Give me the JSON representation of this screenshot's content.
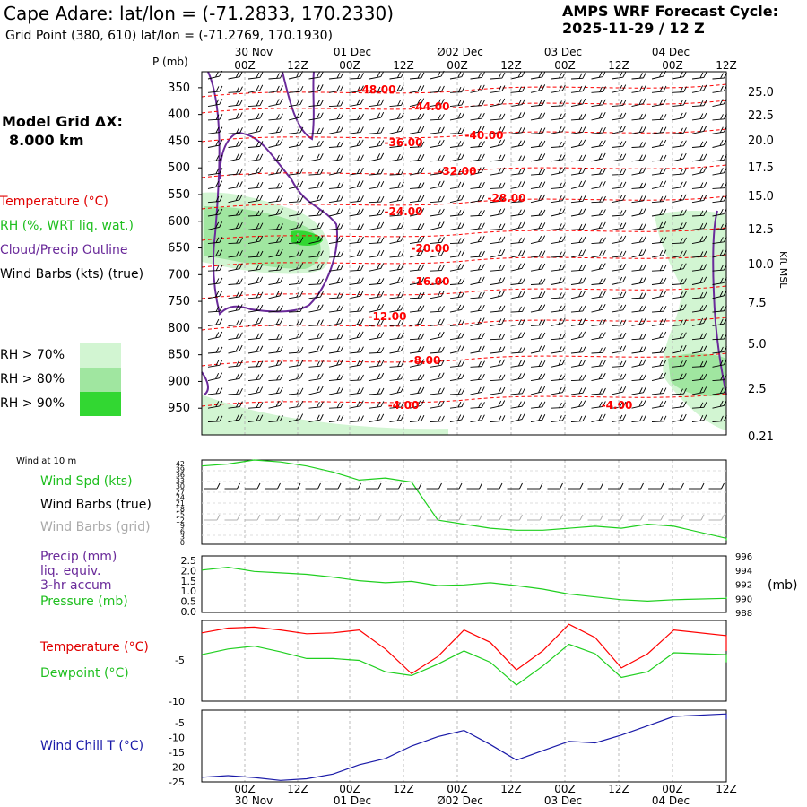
{
  "header": {
    "station": "Cape Adare:  lat/lon = (-71.2833, 170.2330)",
    "grid_point": "Grid Point (380, 610) lat/lon = (-71.2769, 170.1930)",
    "cycle_label": "AMPS WRF Forecast Cycle:",
    "cycle_value": "2025-11-29 / 12  Z"
  },
  "model": {
    "grid_label": "Model Grid ΔX:",
    "grid_value": "8.000 km"
  },
  "time_axis": {
    "top_dates": [
      "30 Nov",
      "01 Dec",
      "Ø02 Dec",
      "03 Dec",
      "04 Dec"
    ],
    "hours": [
      "00Z",
      "12Z",
      "00Z",
      "12Z",
      "00Z",
      "12Z",
      "00Z",
      "12Z",
      "00Z",
      "12Z"
    ],
    "bottom_dates": [
      "30 Nov",
      "01 Dec",
      "Ø02 Dec",
      "03 Dec",
      "04 Dec"
    ]
  },
  "sounding_legend": {
    "pressure_label": "P (mb)",
    "temperature": "Temperature (°C)",
    "rh": "RH (%, WRT liq. wat.)",
    "cloud": "Cloud/Precip Outline",
    "wind": "Wind Barbs (kts) (true)",
    "rh_levels": [
      "RH > 70%",
      "RH > 80%",
      "RH > 90%"
    ],
    "height_label": "Kft MSL"
  },
  "panel_labels": {
    "wind10": "Wind at 10 m",
    "wind_spd": "Wind Spd (kts)",
    "wind_true": "Wind Barbs (true)",
    "wind_grid": "Wind Barbs (grid)",
    "precip1": "Precip (mm)",
    "precip2": "liq. equiv.",
    "precip3": "3-hr accum",
    "pressure": "Pressure (mb)",
    "pressure_unit": "(mb)",
    "temp": "Temperature (°C)",
    "dewpoint": "Dewpoint (°C)",
    "windchill": "Wind Chill T (°C)"
  },
  "colors": {
    "temperature": "#ff0000",
    "rh_70": "#d2f5d2",
    "rh_80": "#a0e6a0",
    "rh_90": "#32d732",
    "cloud": "#6a2a9a",
    "green_line": "#1fcf1f",
    "grid_barb": "#aaaaaa",
    "windchill": "#1a1aa8"
  },
  "chart_data": [
    {
      "type": "heatmap",
      "title": "",
      "ylabel": "P (mb)",
      "y_ticks": [
        350,
        400,
        450,
        500,
        550,
        600,
        650,
        700,
        750,
        800,
        850,
        900,
        950
      ],
      "ylim": [
        320,
        1000
      ],
      "right_ticks": [
        "25.0",
        "22.5",
        "20.0",
        "17.5",
        "15.0",
        "12.5",
        "10.0",
        "7.5",
        "5.0",
        "2.5",
        "0.21"
      ],
      "right_label": "Kft MSL",
      "isotherm_labels": [
        "-48.00",
        "-44.00",
        "-40.00",
        "-36.00",
        "-32.00",
        "-28.00",
        "-24.00",
        "-20.00",
        "-16.00",
        "-12.00",
        "-8.00",
        "-4.00",
        "-4.00"
      ],
      "rh_levels": [
        "RH > 70%",
        "RH > 80%",
        "RH > 90%"
      ]
    },
    {
      "type": "line",
      "title": "",
      "ylabel": "Wind Spd (kts)",
      "y_ticks": [
        "42",
        "39",
        "36",
        "33",
        "30",
        "27",
        "24",
        "21",
        "18",
        "15",
        "12",
        "9",
        "6",
        "3",
        "0"
      ],
      "ylim": [
        0,
        42
      ],
      "x_hours": [
        0,
        6,
        12,
        18,
        24,
        30,
        36,
        42,
        48,
        54,
        60,
        66,
        72,
        78,
        84,
        90,
        96,
        102,
        108,
        114,
        120
      ],
      "series": [
        {
          "values": [
            39,
            40,
            42,
            41,
            39,
            36,
            32,
            33,
            31,
            12,
            10,
            8,
            7,
            7,
            8,
            9,
            8,
            10,
            9,
            3,
            2
          ]
        }
      ]
    },
    {
      "type": "line",
      "title": "",
      "ylabel": "Precip (mm) / Pressure (mb)",
      "y_ticks_left": [
        "2.5",
        "2.0",
        "1.5",
        "1.0",
        "0.5",
        "0.0"
      ],
      "y_ticks_right": [
        "996",
        "994",
        "992",
        "990",
        "988"
      ],
      "ylim_left": [
        0,
        2.5
      ],
      "ylim_right": [
        988,
        996
      ],
      "x_hours": [
        0,
        6,
        12,
        18,
        24,
        30,
        36,
        42,
        48,
        54,
        60,
        66,
        72,
        78,
        84,
        90,
        96,
        102,
        108,
        114,
        120
      ],
      "series": [
        {
          "values": [
            994.0,
            994.4,
            993.8,
            993.6,
            993.4,
            993.0,
            992.5,
            992.2,
            992.4,
            991.8,
            991.9,
            992.2,
            991.8,
            991.3,
            990.6,
            990.2,
            989.8,
            989.6,
            989.8,
            990.0,
            990.2
          ]
        }
      ]
    },
    {
      "type": "line",
      "title": "",
      "ylabel": "Temperature / Dewpoint (°C)",
      "y_ticks": [
        "-5",
        "-10"
      ],
      "ylim": [
        -10.5,
        -2
      ],
      "x_hours": [
        0,
        6,
        12,
        18,
        24,
        30,
        36,
        42,
        48,
        54,
        60,
        66,
        72,
        78,
        84,
        90,
        96,
        102,
        108,
        114,
        120
      ],
      "series": [
        {
          "values": [
            -3.3,
            -2.8,
            -2.7,
            -3.0,
            -3.4,
            -3.3,
            -3.0,
            -5.0,
            -7.6,
            -5.8,
            -3.0,
            -4.3,
            -7.2,
            -5.2,
            -2.4,
            -3.8,
            -7.0,
            -5.5,
            -3.0,
            -3.6,
            -5.2
          ]
        },
        {
          "values": [
            -5.6,
            -5.0,
            -4.7,
            -5.3,
            -6.0,
            -6.0,
            -6.2,
            -7.4,
            -7.8,
            -6.6,
            -5.2,
            -6.4,
            -8.8,
            -6.8,
            -4.5,
            -5.5,
            -8.0,
            -7.4,
            -5.4,
            -5.6,
            -6.4
          ]
        }
      ]
    },
    {
      "type": "line",
      "title": "",
      "ylabel": "Wind Chill T (°C)",
      "y_ticks": [
        "-5",
        "-10",
        "-15",
        "-20",
        "-25"
      ],
      "ylim": [
        -25,
        -2
      ],
      "x_hours": [
        0,
        6,
        12,
        18,
        24,
        30,
        36,
        42,
        48,
        54,
        60,
        66,
        72,
        78,
        84,
        90,
        96,
        102,
        108,
        114,
        120
      ],
      "series": [
        {
          "values": [
            -23.5,
            -23.0,
            -23.6,
            -24.5,
            -24.0,
            -22.5,
            -19.5,
            -17.5,
            -13.5,
            -10.5,
            -8.5,
            -13.0,
            -18.0,
            -15.0,
            -12.0,
            -12.5,
            -10.0,
            -7.0,
            -4.0,
            -3.2,
            -5.0
          ]
        }
      ]
    }
  ]
}
